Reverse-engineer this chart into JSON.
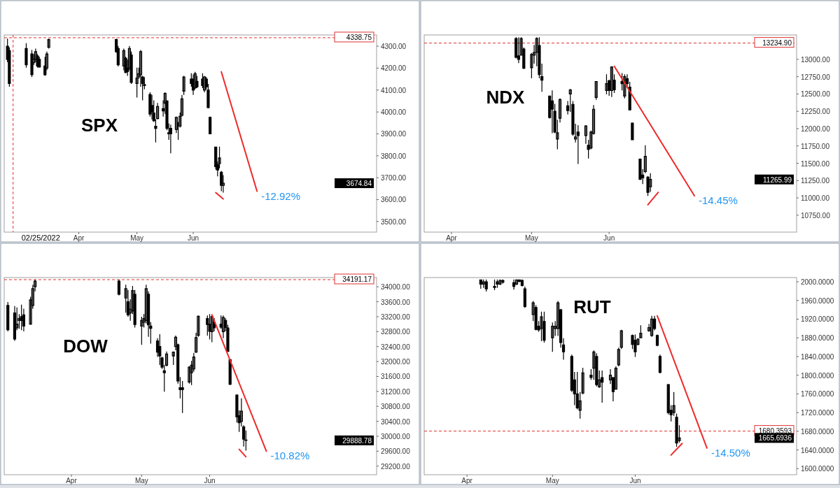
{
  "chart_data": [
    {
      "type": "candlestick",
      "title": "SPX",
      "color": "#000000",
      "x": [
        "2022-02-22",
        "2022-02-23",
        "2022-03-04",
        "2022-03-07",
        "2022-03-08",
        "2022-03-09",
        "2022-03-10",
        "2022-03-11",
        "2022-03-14",
        "2022-03-15",
        "2022-03-16",
        "2022-04-21",
        "2022-04-22",
        "2022-04-25",
        "2022-04-26",
        "2022-04-27",
        "2022-04-28",
        "2022-04-29",
        "2022-05-02",
        "2022-05-03",
        "2022-05-04",
        "2022-05-05",
        "2022-05-06",
        "2022-05-09",
        "2022-05-10",
        "2022-05-11",
        "2022-05-12",
        "2022-05-13",
        "2022-05-16",
        "2022-05-17",
        "2022-05-18",
        "2022-05-19",
        "2022-05-20",
        "2022-05-23",
        "2022-05-24",
        "2022-05-25",
        "2022-05-26",
        "2022-05-27",
        "2022-05-31",
        "2022-06-01",
        "2022-06-02",
        "2022-06-03",
        "2022-06-06",
        "2022-06-07",
        "2022-06-08",
        "2022-06-09",
        "2022-06-10",
        "2022-06-13",
        "2022-06-14",
        "2022-06-15",
        "2022-06-16",
        "2022-06-17"
      ],
      "ohlc": [
        [
          4300,
          4335,
          4227,
          4240
        ],
        [
          4280,
          4295,
          4115,
          4130
        ],
        [
          4290,
          4314,
          4202,
          4215
        ],
        [
          4265,
          4283,
          4159,
          4170
        ],
        [
          4225,
          4264,
          4214,
          4240
        ],
        [
          4240,
          4289,
          4227,
          4275
        ],
        [
          4255,
          4264,
          4202,
          4210
        ],
        [
          4240,
          4252,
          4202,
          4205
        ],
        [
          4210,
          4252,
          4165,
          4170
        ],
        [
          4200,
          4276,
          4190,
          4265
        ],
        [
          4295,
          4335,
          4289,
          4330
        ],
        [
          4330,
          4335,
          4270,
          4275
        ],
        [
          4290,
          4301,
          4208,
          4215
        ],
        [
          4210,
          4289,
          4190,
          4280
        ],
        [
          4245,
          4252,
          4177,
          4180
        ],
        [
          4200,
          4239,
          4165,
          4185
        ],
        [
          4200,
          4301,
          4190,
          4290
        ],
        [
          4260,
          4276,
          4128,
          4135
        ],
        [
          4130,
          4202,
          4066,
          4155
        ],
        [
          4160,
          4202,
          4152,
          4175
        ],
        [
          4170,
          4283,
          4115,
          4275
        ],
        [
          4160,
          4165,
          4053,
          4130
        ],
        [
          4120,
          4159,
          4103,
          4125
        ],
        [
          4080,
          4090,
          3979,
          3990
        ],
        [
          4030,
          4078,
          3966,
          4000
        ],
        [
          3995,
          4053,
          3954,
          3960
        ],
        [
          3935,
          3966,
          3861,
          3925
        ],
        [
          3970,
          4041,
          3966,
          4025
        ],
        [
          4015,
          4053,
          3979,
          4005
        ],
        [
          4040,
          4090,
          3991,
          4085
        ],
        [
          4050,
          4053,
          3917,
          3925
        ],
        [
          3900,
          3948,
          3873,
          3905
        ],
        [
          3925,
          3942,
          3811,
          3900
        ],
        [
          3920,
          3979,
          3904,
          3975
        ],
        [
          3940,
          3954,
          3873,
          3940
        ],
        [
          3935,
          3997,
          3929,
          3980
        ],
        [
          3985,
          4078,
          3979,
          4060
        ],
        [
          4095,
          4165,
          4078,
          4160
        ],
        [
          4150,
          4177,
          4115,
          4130
        ],
        [
          4150,
          4171,
          4078,
          4100
        ],
        [
          4110,
          4183,
          4103,
          4175
        ],
        [
          4140,
          4165,
          4109,
          4115
        ],
        [
          4150,
          4177,
          4109,
          4120
        ],
        [
          4100,
          4165,
          4090,
          4160
        ],
        [
          4150,
          4159,
          4103,
          4115
        ],
        [
          4100,
          4128,
          4016,
          4020
        ],
        [
          3975,
          3979,
          3898,
          3900
        ],
        [
          3840,
          3842,
          3737,
          3750
        ],
        [
          3760,
          3774,
          3706,
          3735
        ],
        [
          3765,
          3842,
          3743,
          3790
        ],
        [
          3725,
          3731,
          3638,
          3665
        ],
        [
          3665,
          3712,
          3632,
          3674.84
        ]
      ],
      "xlim": [
        "2022-02-21",
        "2022-09-06"
      ],
      "xticks": [
        {
          "value": "2022-04-01",
          "label": "Apr"
        },
        {
          "value": "2022-05-02",
          "label": "May"
        },
        {
          "value": "2022-06-01",
          "label": "Jun"
        }
      ],
      "ylim": [
        3458,
        4345
      ],
      "yticks": [
        {
          "value": 3500,
          "label": "3500.00"
        },
        {
          "value": 3600,
          "label": "3600.00"
        },
        {
          "value": 3700,
          "label": "3700.00"
        },
        {
          "value": 3800,
          "label": "3800.00"
        },
        {
          "value": 3900,
          "label": "3900.00"
        },
        {
          "value": 4000,
          "label": "4000.00"
        },
        {
          "value": 4100,
          "label": "4100.00"
        },
        {
          "value": 4200,
          "label": "4200.00"
        },
        {
          "value": 4300,
          "label": "4300.00"
        }
      ],
      "series": [
        {
          "type": "line",
          "color": "#ee2a2a",
          "x": [
            "2022-06-16",
            "2022-07-05"
          ],
          "values": [
            4183,
            3638
          ]
        },
        {
          "type": "line",
          "color": "#ee2a2a",
          "x": [
            "2022-06-13",
            "2022-06-17"
          ],
          "values": [
            3632,
            3603
          ]
        }
      ],
      "ref_lines": [
        {
          "axis": "y",
          "value": 4338.75,
          "label": "4338.75",
          "color": "#e03030",
          "line_style": "dashed"
        },
        {
          "axis": "x",
          "value": "2022-02-25",
          "label": "02/25/2022",
          "color": "#e03030",
          "line_style": "dashed"
        }
      ],
      "annotations": [
        "-12.92%",
        "3674.84"
      ]
    },
    {
      "type": "candlestick",
      "title": "NDX",
      "color": "#000000",
      "x": [
        "2022-04-26",
        "2022-04-27",
        "2022-04-28",
        "2022-04-29",
        "2022-05-02",
        "2022-05-03",
        "2022-05-04",
        "2022-05-05",
        "2022-05-06",
        "2022-05-09",
        "2022-05-10",
        "2022-05-11",
        "2022-05-12",
        "2022-05-13",
        "2022-05-16",
        "2022-05-17",
        "2022-05-18",
        "2022-05-19",
        "2022-05-20",
        "2022-05-23",
        "2022-05-24",
        "2022-05-25",
        "2022-05-26",
        "2022-05-27",
        "2022-05-31",
        "2022-06-01",
        "2022-06-02",
        "2022-06-03",
        "2022-06-06",
        "2022-06-07",
        "2022-06-08",
        "2022-06-09",
        "2022-06-10",
        "2022-06-13",
        "2022-06-14",
        "2022-06-15",
        "2022-06-16",
        "2022-06-17"
      ],
      "ohlc": [
        [
          13300,
          13320,
          13015,
          13030
        ],
        [
          13050,
          13320,
          12946,
          13000
        ],
        [
          13060,
          13320,
          13054,
          13300
        ],
        [
          13150,
          13170,
          12861,
          12870
        ],
        [
          12880,
          13093,
          12726,
          13070
        ],
        [
          13060,
          13208,
          12938,
          13100
        ],
        [
          13100,
          13320,
          12900,
          13300
        ],
        [
          13200,
          13320,
          12726,
          12780
        ],
        [
          12750,
          12938,
          12533,
          12700
        ],
        [
          12470,
          12475,
          12147,
          12160
        ],
        [
          12400,
          12552,
          11935,
          12280
        ],
        [
          12250,
          12359,
          11935,
          11950
        ],
        [
          11850,
          12128,
          11703,
          11940
        ],
        [
          12150,
          12436,
          12089,
          12420
        ],
        [
          12330,
          12398,
          12205,
          12260
        ],
        [
          12500,
          12572,
          12243,
          12560
        ],
        [
          12350,
          12398,
          11896,
          11920
        ],
        [
          11850,
          12070,
          11800,
          11880
        ],
        [
          11950,
          12050,
          11491,
          11900
        ],
        [
          11900,
          12050,
          11780,
          12040
        ],
        [
          11760,
          11838,
          11568,
          11700
        ],
        [
          11720,
          11973,
          11703,
          11950
        ],
        [
          11930,
          12340,
          11915,
          12280
        ],
        [
          12450,
          12687,
          12417,
          12680
        ],
        [
          12550,
          12784,
          12494,
          12650
        ],
        [
          12690,
          12707,
          12475,
          12550
        ],
        [
          12550,
          12900,
          12456,
          12890
        ],
        [
          12700,
          12784,
          12514,
          12560
        ],
        [
          12680,
          12803,
          12552,
          12650
        ],
        [
          12470,
          12784,
          12436,
          12750
        ],
        [
          12720,
          12784,
          12591,
          12650
        ],
        [
          12600,
          12676,
          12263,
          12270
        ],
        [
          12080,
          12089,
          11838,
          11840
        ],
        [
          11560,
          11568,
          11259,
          11270
        ],
        [
          11330,
          11414,
          11201,
          11290
        ],
        [
          11380,
          11761,
          11356,
          11600
        ],
        [
          11300,
          11317,
          11027,
          11080
        ],
        [
          11160,
          11356,
          11085,
          11265.99
        ]
      ],
      "xlim": [
        "2022-03-22",
        "2022-08-12"
      ],
      "xticks": [
        {
          "value": "2022-04-01",
          "label": "Apr"
        },
        {
          "value": "2022-05-02",
          "label": "May"
        },
        {
          "value": "2022-06-01",
          "label": "Jun"
        }
      ],
      "ylim": [
        10526,
        13332
      ],
      "yticks": [
        {
          "value": 10750,
          "label": "10750.00"
        },
        {
          "value": 11000,
          "label": "11000.00"
        },
        {
          "value": 11250,
          "label": "11250.00"
        },
        {
          "value": 11500,
          "label": "11500.00"
        },
        {
          "value": 11750,
          "label": "11750.00"
        },
        {
          "value": 12000,
          "label": "12000.00"
        },
        {
          "value": 12250,
          "label": "12250.00"
        },
        {
          "value": 12500,
          "label": "12500.00"
        },
        {
          "value": 12750,
          "label": "12750.00"
        },
        {
          "value": 13000,
          "label": "13000.00"
        }
      ],
      "series": [
        {
          "type": "line",
          "color": "#ee2a2a",
          "x": [
            "2022-06-03",
            "2022-07-04"
          ],
          "values": [
            12900,
            11030
          ]
        },
        {
          "type": "line",
          "color": "#ee2a2a",
          "x": [
            "2022-06-16",
            "2022-06-20"
          ],
          "values": [
            10900,
            11080
          ]
        }
      ],
      "ref_lines": [
        {
          "axis": "y",
          "value": 13234.9,
          "label": "13234.90",
          "color": "#e03030",
          "line_style": "dashed"
        }
      ],
      "annotations": [
        "-14.45%",
        "11265.99"
      ]
    },
    {
      "type": "candlestick",
      "title": "DOW",
      "color": "#000000",
      "x": [
        "2022-03-04",
        "2022-03-07",
        "2022-03-08",
        "2022-03-09",
        "2022-03-10",
        "2022-03-11",
        "2022-03-14",
        "2022-03-15",
        "2022-03-16",
        "2022-04-22",
        "2022-04-25",
        "2022-04-26",
        "2022-04-27",
        "2022-04-28",
        "2022-04-29",
        "2022-05-02",
        "2022-05-03",
        "2022-05-04",
        "2022-05-05",
        "2022-05-06",
        "2022-05-09",
        "2022-05-10",
        "2022-05-11",
        "2022-05-12",
        "2022-05-13",
        "2022-05-16",
        "2022-05-17",
        "2022-05-18",
        "2022-05-19",
        "2022-05-20",
        "2022-05-23",
        "2022-05-24",
        "2022-05-25",
        "2022-05-26",
        "2022-05-27",
        "2022-05-31",
        "2022-06-01",
        "2022-06-02",
        "2022-06-03",
        "2022-06-06",
        "2022-06-07",
        "2022-06-08",
        "2022-06-09",
        "2022-06-10",
        "2022-06-13",
        "2022-06-14",
        "2022-06-15",
        "2022-06-16",
        "2022-06-17"
      ],
      "ohlc": [
        [
          33500,
          33592,
          32804,
          32850
        ],
        [
          33300,
          33484,
          32553,
          32600
        ],
        [
          32900,
          33448,
          32839,
          33000
        ],
        [
          33100,
          33269,
          32875,
          33150
        ],
        [
          33200,
          33520,
          32839,
          33100
        ],
        [
          33250,
          33413,
          32804,
          32950
        ],
        [
          33000,
          33735,
          32983,
          33650
        ],
        [
          33500,
          34057,
          33413,
          33950
        ],
        [
          34000,
          34190,
          33878,
          34150
        ],
        [
          34150,
          34190,
          33771,
          33800
        ],
        [
          33700,
          34057,
          33305,
          33950
        ],
        [
          33600,
          33914,
          33198,
          33250
        ],
        [
          33300,
          33663,
          33090,
          33400
        ],
        [
          33350,
          34021,
          33269,
          33900
        ],
        [
          33800,
          33914,
          32911,
          32990
        ],
        [
          32950,
          33198,
          32445,
          33100
        ],
        [
          33050,
          33269,
          32911,
          33150
        ],
        [
          33100,
          34057,
          33019,
          33950
        ],
        [
          33800,
          33878,
          32660,
          32980
        ],
        [
          32950,
          33054,
          32481,
          32890
        ],
        [
          32550,
          32625,
          32123,
          32250
        ],
        [
          32400,
          32732,
          31908,
          32150
        ],
        [
          32100,
          32123,
          31801,
          31850
        ],
        [
          31750,
          31908,
          31192,
          31700
        ],
        [
          31900,
          32266,
          31872,
          32200
        ],
        [
          32150,
          32266,
          31908,
          32250
        ],
        [
          32400,
          32696,
          32302,
          32650
        ],
        [
          32450,
          32481,
          31407,
          31480
        ],
        [
          31300,
          31586,
          31013,
          31250
        ],
        [
          31300,
          31478,
          30619,
          31250
        ],
        [
          31450,
          31872,
          31407,
          31850
        ],
        [
          31700,
          32016,
          31371,
          31900
        ],
        [
          31800,
          32230,
          31729,
          32120
        ],
        [
          32250,
          32768,
          32230,
          32640
        ],
        [
          32700,
          33233,
          32660,
          33210
        ],
        [
          33150,
          33233,
          32696,
          32990
        ],
        [
          33000,
          33269,
          32589,
          32810
        ],
        [
          32800,
          33233,
          32517,
          33200
        ],
        [
          33050,
          33162,
          32804,
          32900
        ],
        [
          33000,
          33233,
          32875,
          32920
        ],
        [
          32800,
          33233,
          32625,
          33180
        ],
        [
          33100,
          33162,
          32804,
          32910
        ],
        [
          32900,
          32983,
          32266,
          32270
        ],
        [
          32050,
          32051,
          31371,
          31390
        ],
        [
          31100,
          31120,
          30368,
          30520
        ],
        [
          30550,
          30690,
          30117,
          30360
        ],
        [
          30400,
          31013,
          30260,
          30670
        ],
        [
          30250,
          30296,
          29723,
          29920
        ],
        [
          29900,
          30153,
          29616,
          29888.78
        ]
      ],
      "xlim": [
        "2022-03-03",
        "2022-08-13"
      ],
      "xticks": [
        {
          "value": "2022-04-01",
          "label": "Apr"
        },
        {
          "value": "2022-05-02",
          "label": "May"
        },
        {
          "value": "2022-06-01",
          "label": "Jun"
        }
      ],
      "ylim": [
        29007,
        34210
      ],
      "yticks": [
        {
          "value": 29200,
          "label": "29200.00"
        },
        {
          "value": 29600,
          "label": "29600.00"
        },
        {
          "value": 30000,
          "label": "30000.00"
        },
        {
          "value": 30400,
          "label": "30400.00"
        },
        {
          "value": 30800,
          "label": "30800.00"
        },
        {
          "value": 31200,
          "label": "31200.00"
        },
        {
          "value": 31600,
          "label": "31600.00"
        },
        {
          "value": 32000,
          "label": "32000.00"
        },
        {
          "value": 32400,
          "label": "32400.00"
        },
        {
          "value": 32800,
          "label": "32800.00"
        },
        {
          "value": 33200,
          "label": "33200.00"
        },
        {
          "value": 33600,
          "label": "33600.00"
        },
        {
          "value": 34000,
          "label": "34000.00"
        }
      ],
      "series": [
        {
          "type": "line",
          "color": "#ee2a2a",
          "x": [
            "2022-06-02",
            "2022-06-26"
          ],
          "values": [
            33250,
            29600
          ]
        },
        {
          "type": "line",
          "color": "#ee2a2a",
          "x": [
            "2022-06-14",
            "2022-06-17"
          ],
          "values": [
            29650,
            29450
          ]
        }
      ],
      "ref_lines": [
        {
          "axis": "y",
          "value": 34191.17,
          "label": "34191.17",
          "color": "#e03030",
          "line_style": "dashed"
        }
      ],
      "annotations": [
        "-10.82%",
        "29888.78"
      ]
    },
    {
      "type": "candlestick",
      "title": "RUT",
      "color": "#000000",
      "x": [
        "2022-04-06",
        "2022-04-07",
        "2022-04-08",
        "2022-04-11",
        "2022-04-12",
        "2022-04-13",
        "2022-04-14",
        "2022-04-18",
        "2022-04-19",
        "2022-04-20",
        "2022-04-21",
        "2022-04-22",
        "2022-04-25",
        "2022-04-26",
        "2022-04-27",
        "2022-04-28",
        "2022-04-29",
        "2022-05-02",
        "2022-05-03",
        "2022-05-04",
        "2022-05-05",
        "2022-05-06",
        "2022-05-09",
        "2022-05-10",
        "2022-05-11",
        "2022-05-12",
        "2022-05-13",
        "2022-05-16",
        "2022-05-17",
        "2022-05-18",
        "2022-05-19",
        "2022-05-20",
        "2022-05-23",
        "2022-05-24",
        "2022-05-25",
        "2022-05-26",
        "2022-05-27",
        "2022-05-31",
        "2022-06-01",
        "2022-06-02",
        "2022-06-03",
        "2022-06-06",
        "2022-06-07",
        "2022-06-08",
        "2022-06-09",
        "2022-06-10",
        "2022-06-13",
        "2022-06-14",
        "2022-06-15",
        "2022-06-16",
        "2022-06-17"
      ],
      "ohlc": [
        [
          2004,
          2005,
          1985,
          1995
        ],
        [
          1995,
          2005,
          1987,
          2000
        ],
        [
          2000,
          2005,
          1979,
          1985
        ],
        [
          1990,
          2005,
          1982,
          1988
        ],
        [
          2000,
          2005,
          1987,
          1995
        ],
        [
          1995,
          2005,
          1993,
          2003
        ],
        [
          2003,
          2005,
          1996,
          1999
        ],
        [
          1998,
          2005,
          1983,
          1990
        ],
        [
          1995,
          2005,
          1993,
          2004
        ],
        [
          2004,
          2005,
          1999,
          2001
        ],
        [
          2003,
          2005,
          1990,
          1992
        ],
        [
          1985,
          1990,
          1944,
          1947
        ],
        [
          1930,
          1959,
          1916,
          1955
        ],
        [
          1945,
          1950,
          1896,
          1898
        ],
        [
          1905,
          1916,
          1893,
          1897
        ],
        [
          1900,
          1936,
          1873,
          1925
        ],
        [
          1915,
          1936,
          1870,
          1875
        ],
        [
          1880,
          1913,
          1850,
          1905
        ],
        [
          1900,
          1916,
          1884,
          1905
        ],
        [
          1900,
          1959,
          1884,
          1955
        ],
        [
          1940,
          1942,
          1859,
          1870
        ],
        [
          1865,
          1879,
          1833,
          1850
        ],
        [
          1840,
          1844,
          1764,
          1768
        ],
        [
          1790,
          1807,
          1736,
          1760
        ],
        [
          1760,
          1807,
          1727,
          1730
        ],
        [
          1725,
          1764,
          1707,
          1745
        ],
        [
          1762,
          1816,
          1759,
          1805
        ],
        [
          1800,
          1813,
          1790,
          1795
        ],
        [
          1815,
          1853,
          1790,
          1850
        ],
        [
          1840,
          1847,
          1776,
          1780
        ],
        [
          1775,
          1810,
          1773,
          1790
        ],
        [
          1795,
          1810,
          1741,
          1785
        ],
        [
          1790,
          1813,
          1781,
          1800
        ],
        [
          1795,
          1796,
          1744,
          1765
        ],
        [
          1770,
          1819,
          1770,
          1815
        ],
        [
          1822,
          1859,
          1819,
          1855
        ],
        [
          1860,
          1897,
          1856,
          1895
        ],
        [
          1885,
          1887,
          1856,
          1866
        ],
        [
          1875,
          1887,
          1839,
          1850
        ],
        [
          1866,
          1879,
          1864,
          1877
        ],
        [
          1880,
          1907,
          1879,
          1890
        ],
        [
          1895,
          1910,
          1893,
          1902
        ],
        [
          1885,
          1927,
          1882,
          1920
        ],
        [
          1920,
          1927,
          1896,
          1900
        ],
        [
          1885,
          1887,
          1862,
          1864
        ],
        [
          1840,
          1844,
          1804,
          1806
        ],
        [
          1780,
          1781,
          1716,
          1720
        ],
        [
          1725,
          1736,
          1701,
          1715
        ],
        [
          1720,
          1764,
          1713,
          1735
        ],
        [
          1710,
          1718,
          1647,
          1655
        ],
        [
          1660,
          1693,
          1656,
          1665.6936
        ]
      ],
      "xlim": [
        "2022-03-17",
        "2022-07-29"
      ],
      "xticks": [
        {
          "value": "2022-04-01",
          "label": "Apr"
        },
        {
          "value": "2022-05-02",
          "label": "May"
        },
        {
          "value": "2022-06-01",
          "label": "Jun"
        }
      ],
      "ylim": [
        1590,
        2006
      ],
      "yticks": [
        {
          "value": 1600,
          "label": "1600.0000"
        },
        {
          "value": 1640,
          "label": "1640.0000"
        },
        {
          "value": 1680,
          "label": "1680.0000"
        },
        {
          "value": 1720,
          "label": "1720.0000"
        },
        {
          "value": 1760,
          "label": "1760.0000"
        },
        {
          "value": 1800,
          "label": "1800.0000"
        },
        {
          "value": 1840,
          "label": "1840.0000"
        },
        {
          "value": 1880,
          "label": "1880.0000"
        },
        {
          "value": 1920,
          "label": "1920.0000"
        },
        {
          "value": 1960,
          "label": "1960.0000"
        },
        {
          "value": 2000,
          "label": "2000.0000"
        }
      ],
      "series": [
        {
          "type": "line",
          "color": "#ee2a2a",
          "x": [
            "2022-06-09",
            "2022-06-27"
          ],
          "values": [
            1927,
            1644
          ]
        },
        {
          "type": "line",
          "color": "#ee2a2a",
          "x": [
            "2022-06-14",
            "2022-06-18"
          ],
          "values": [
            1629,
            1654
          ]
        }
      ],
      "ref_lines": [
        {
          "axis": "y",
          "value": 1680.3593,
          "label": "1680.3593",
          "color": "#e03030",
          "line_style": "dashed"
        }
      ],
      "annotations": [
        "-14.50%",
        "1665.6936"
      ]
    }
  ]
}
